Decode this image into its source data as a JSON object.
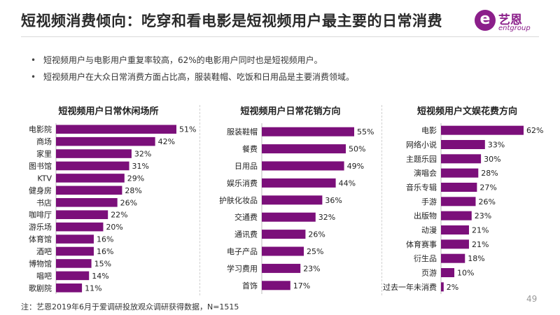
{
  "header": {
    "title": "短视频消费倾向：吃穿和看电影是短视频用户最主要的日常消费",
    "logo_glyph": "e",
    "logo_cn": "艺恩",
    "logo_en": "entgroup"
  },
  "bullets": [
    "短视频用户与电影用户重复率较高，62%的电影用户同时也是短视频用户。",
    "短视频用户在大众日常消费方面占比高，服装鞋帽、吃饭和日用品是主要消费领域。"
  ],
  "colors": {
    "bar": "#7b0f7a",
    "accent": "#8b1e8a"
  },
  "chart_data": [
    {
      "type": "bar",
      "orientation": "horizontal",
      "title": "短视频用户日常休闲场所",
      "categories": [
        "电影院",
        "商场",
        "家里",
        "图书馆",
        "KTV",
        "健身房",
        "书店",
        "咖啡厅",
        "游乐场",
        "体育馆",
        "酒吧",
        "博物馆",
        "唱吧",
        "歌剧院"
      ],
      "values": [
        51,
        42,
        32,
        31,
        29,
        28,
        26,
        22,
        20,
        16,
        16,
        15,
        14,
        11
      ],
      "labels": [
        "51%",
        "42%",
        "32%",
        "31%",
        "29%",
        "28%",
        "26%",
        "22%",
        "20%",
        "16%",
        "16%",
        "15%",
        "14%",
        "11%"
      ]
    },
    {
      "type": "bar",
      "orientation": "horizontal",
      "title": "短视频用户日常花销方向",
      "categories": [
        "服装鞋帽",
        "餐费",
        "日用品",
        "娱乐消费",
        "护肤化妆品",
        "交通费",
        "通讯费",
        "电子产品",
        "学习费用",
        "首饰"
      ],
      "values": [
        55,
        50,
        49,
        44,
        36,
        32,
        26,
        25,
        23,
        17
      ],
      "labels": [
        "55%",
        "50%",
        "49%",
        "44%",
        "36%",
        "32%",
        "26%",
        "25%",
        "23%",
        "17%"
      ]
    },
    {
      "type": "bar",
      "orientation": "horizontal",
      "title": "短视频用户文娱花费方向",
      "categories": [
        "电影",
        "网络小说",
        "主题乐园",
        "演唱会",
        "音乐专辑",
        "手游",
        "出版物",
        "动漫",
        "体育赛事",
        "衍生品",
        "页游",
        "过去一年未消费"
      ],
      "values": [
        62,
        33,
        30,
        28,
        27,
        26,
        23,
        21,
        21,
        18,
        10,
        2
      ],
      "labels": [
        "62%",
        "33%",
        "30%",
        "28%",
        "27%",
        "26%",
        "23%",
        "21%",
        "21%",
        "18%",
        "10%",
        "2%"
      ]
    }
  ],
  "footer": {
    "note": "注：艺恩2019年6月于爱调研投放观众调研获得数据，N=1515",
    "page": "49"
  }
}
